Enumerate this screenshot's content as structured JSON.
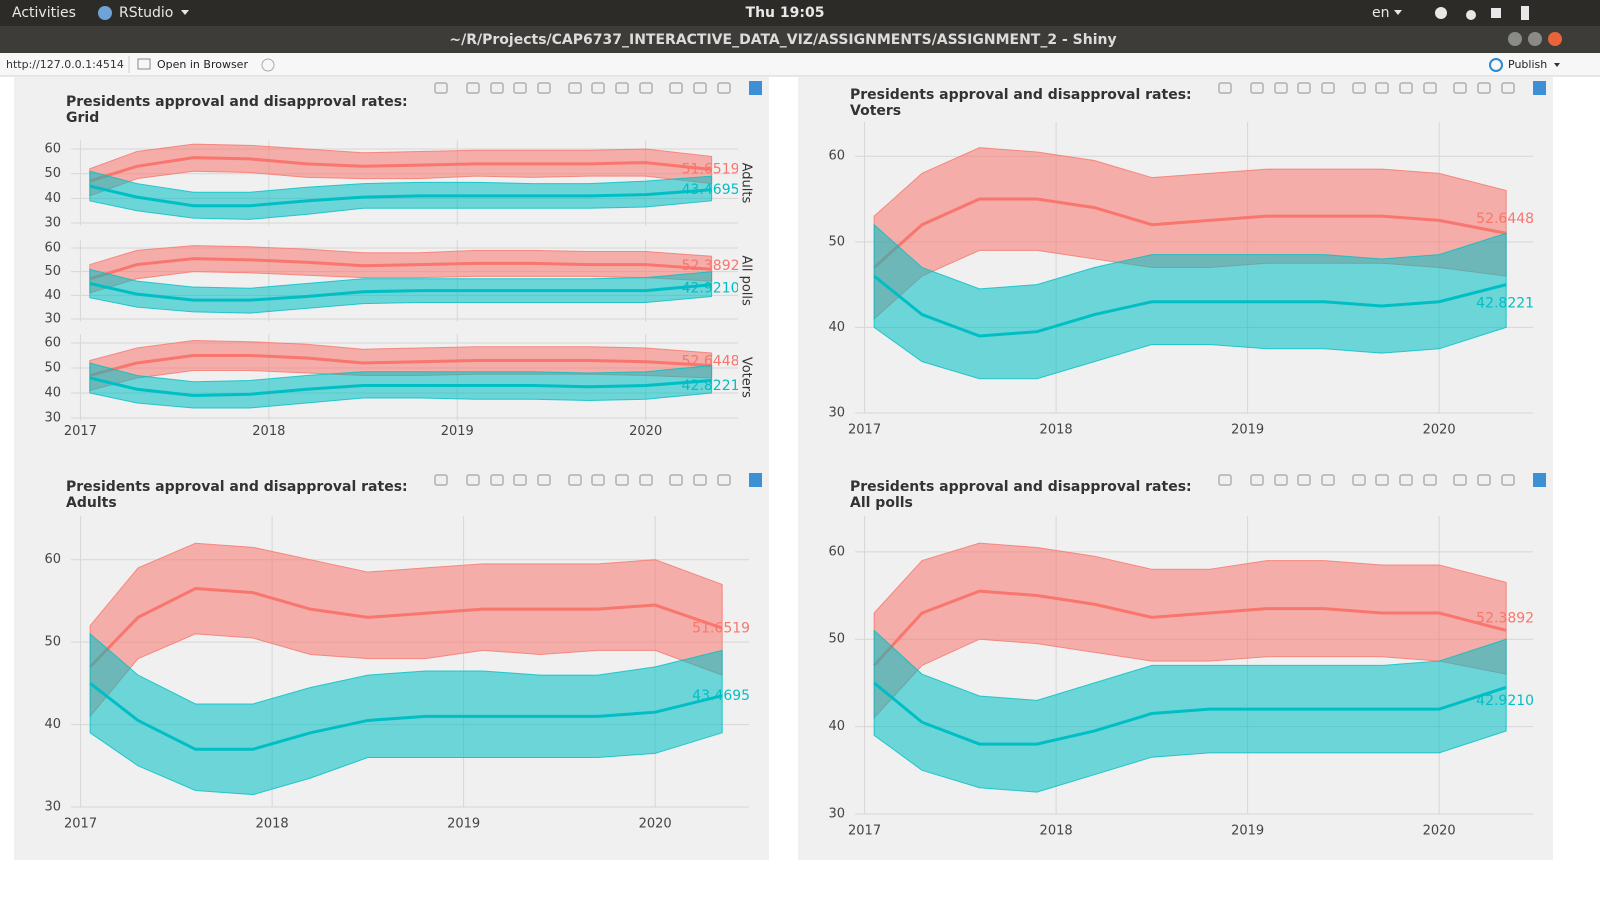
{
  "topbar": {
    "activities": "Activities",
    "app": "RStudio",
    "clock": "Thu 19:05",
    "lang": "en"
  },
  "window_title": "~/R/Projects/CAP6737_INTERACTIVE_DATA_VIZ/ASSIGNMENTS/ASSIGNMENT_2 - Shiny",
  "address": {
    "url": "http://127.0.0.1:4514",
    "open": "Open in Browser",
    "publish": "Publish"
  },
  "chart_data": [
    {
      "type": "facet_grid",
      "title": "Presidents approval and disapproval rates:",
      "subtitle": "Grid",
      "x": [
        2017.05,
        2017.3,
        2017.6,
        2017.9,
        2018.2,
        2018.5,
        2018.8,
        2019.1,
        2019.4,
        2019.7,
        2020.0,
        2020.35
      ],
      "xlim": [
        2016.95,
        2020.49
      ],
      "xticks": [
        2017,
        2018,
        2019,
        2020
      ],
      "grid": true,
      "facets": [
        {
          "label": "Adults",
          "ylim": [
            29,
            63.5
          ],
          "yticks": [
            30,
            40,
            50,
            60
          ],
          "series": [
            {
              "color": "#f8766d",
              "values": [
                47,
                53,
                56.5,
                56,
                54,
                53,
                53.5,
                54,
                54,
                54,
                54.5,
                51.7
              ],
              "low": [
                41,
                48,
                51,
                50.5,
                48.5,
                48,
                48,
                49,
                48.5,
                49,
                49,
                46
              ],
              "high": [
                52,
                59,
                62,
                61.5,
                60,
                58.5,
                59,
                59.5,
                59.5,
                59.5,
                60,
                57
              ],
              "end_value": 51.65192
            },
            {
              "color": "#00bfc4",
              "values": [
                45,
                40.5,
                37,
                37,
                39,
                40.5,
                41,
                41,
                41,
                41,
                41.5,
                43.5
              ],
              "low": [
                39,
                35,
                32,
                31.5,
                33.5,
                36,
                36,
                36,
                36,
                36,
                36.5,
                39
              ],
              "high": [
                51,
                46,
                42.5,
                42.5,
                44.5,
                46,
                46.5,
                46.5,
                46,
                46,
                47,
                49
              ],
              "end_value": 43.46952
            }
          ]
        },
        {
          "label": "All polls",
          "ylim": [
            29,
            63.5
          ],
          "yticks": [
            30,
            40,
            50,
            60
          ],
          "series": [
            {
              "color": "#f8766d",
              "values": [
                47,
                53,
                55.5,
                55,
                54,
                52.5,
                53,
                53.5,
                53.5,
                53,
                53,
                51
              ],
              "low": [
                41,
                47,
                50,
                49.5,
                48.5,
                47.5,
                47.5,
                48,
                48,
                48,
                47.5,
                46
              ],
              "high": [
                53,
                59,
                61,
                60.5,
                59.5,
                58,
                58,
                59,
                59,
                58.5,
                58.5,
                56.5
              ],
              "end_value": 52.38926
            },
            {
              "color": "#00bfc4",
              "values": [
                45,
                40.5,
                38,
                38,
                39.5,
                41.5,
                42,
                42,
                42,
                42,
                42,
                44.5
              ],
              "low": [
                39,
                35,
                33,
                32.5,
                34.5,
                36.5,
                37,
                37,
                37,
                37,
                37,
                39.5
              ],
              "high": [
                51,
                46,
                43.5,
                43,
                45,
                47,
                47,
                47,
                47,
                47,
                47.5,
                50
              ],
              "end_value": 42.92109
            }
          ]
        },
        {
          "label": "Voters",
          "ylim": [
            29,
            63.5
          ],
          "yticks": [
            30,
            40,
            50,
            60
          ],
          "series": [
            {
              "color": "#f8766d",
              "values": [
                47,
                52,
                55,
                55,
                54,
                52,
                52.5,
                53,
                53,
                53,
                52.5,
                51
              ],
              "low": [
                41,
                46,
                49,
                49,
                48,
                47,
                47,
                47.5,
                47.5,
                47.5,
                47,
                46
              ],
              "high": [
                53,
                58,
                61,
                60.5,
                59.5,
                57.5,
                58,
                58.5,
                58.5,
                58.5,
                58,
                56
              ],
              "end_value": 52.64486
            },
            {
              "color": "#00bfc4",
              "values": [
                46,
                41.5,
                39,
                39.5,
                41.5,
                43,
                43,
                43,
                43,
                42.5,
                43,
                45
              ],
              "low": [
                40,
                36,
                34,
                34,
                36,
                38,
                38,
                37.5,
                37.5,
                37,
                37.5,
                40
              ],
              "high": [
                52,
                47,
                44.5,
                45,
                47,
                48.5,
                48.5,
                48.5,
                48.5,
                48,
                48.5,
                51
              ],
              "end_value": 42.82214
            }
          ]
        }
      ]
    },
    {
      "type": "band_line",
      "title": "Presidents approval and disapproval rates:",
      "subtitle": "Voters",
      "x": [
        2017.05,
        2017.3,
        2017.6,
        2017.9,
        2018.2,
        2018.5,
        2018.8,
        2019.1,
        2019.4,
        2019.7,
        2020.0,
        2020.35
      ],
      "xlim": [
        2016.95,
        2020.49
      ],
      "xticks": [
        2017,
        2018,
        2019,
        2020
      ],
      "ylim": [
        30,
        64
      ],
      "yticks": [
        30,
        40,
        50,
        60
      ],
      "grid": true,
      "series": [
        {
          "color": "#f8766d",
          "values": [
            47,
            52,
            55,
            55,
            54,
            52,
            52.5,
            53,
            53,
            53,
            52.5,
            51
          ],
          "low": [
            41,
            46,
            49,
            49,
            48,
            47,
            47,
            47.5,
            47.5,
            47.5,
            47,
            46
          ],
          "high": [
            53,
            58,
            61,
            60.5,
            59.5,
            57.5,
            58,
            58.5,
            58.5,
            58.5,
            58,
            56
          ],
          "end_value": 52.64486
        },
        {
          "color": "#00bfc4",
          "values": [
            46,
            41.5,
            39,
            39.5,
            41.5,
            43,
            43,
            43,
            43,
            42.5,
            43,
            45
          ],
          "low": [
            40,
            36,
            34,
            34,
            36,
            38,
            38,
            37.5,
            37.5,
            37,
            37.5,
            40
          ],
          "high": [
            52,
            47,
            44.5,
            45,
            47,
            48.5,
            48.5,
            48.5,
            48.5,
            48,
            48.5,
            51
          ],
          "end_value": 42.82214
        }
      ]
    },
    {
      "type": "band_line",
      "title": "Presidents approval and disapproval rates:",
      "subtitle": "Adults",
      "x": [
        2017.05,
        2017.3,
        2017.6,
        2017.9,
        2018.2,
        2018.5,
        2018.8,
        2019.1,
        2019.4,
        2019.7,
        2020.0,
        2020.35
      ],
      "xlim": [
        2016.95,
        2020.49
      ],
      "xticks": [
        2017,
        2018,
        2019,
        2020
      ],
      "ylim": [
        30,
        65.3
      ],
      "yticks": [
        30,
        40,
        50,
        60
      ],
      "grid": true,
      "series": [
        {
          "color": "#f8766d",
          "values": [
            47,
            53,
            56.5,
            56,
            54,
            53,
            53.5,
            54,
            54,
            54,
            54.5,
            51.7
          ],
          "low": [
            41,
            48,
            51,
            50.5,
            48.5,
            48,
            48,
            49,
            48.5,
            49,
            49,
            46
          ],
          "high": [
            52,
            59,
            62,
            61.5,
            60,
            58.5,
            59,
            59.5,
            59.5,
            59.5,
            60,
            57
          ],
          "end_value": 51.65192
        },
        {
          "color": "#00bfc4",
          "values": [
            45,
            40.5,
            37,
            37,
            39,
            40.5,
            41,
            41,
            41,
            41,
            41.5,
            43.5
          ],
          "low": [
            39,
            35,
            32,
            31.5,
            33.5,
            36,
            36,
            36,
            36,
            36,
            36.5,
            39
          ],
          "high": [
            51,
            46,
            42.5,
            42.5,
            44.5,
            46,
            46.5,
            46.5,
            46,
            46,
            47,
            49
          ],
          "end_value": 43.46952
        }
      ]
    },
    {
      "type": "band_line",
      "title": "Presidents approval and disapproval rates:",
      "subtitle": "All polls",
      "x": [
        2017.05,
        2017.3,
        2017.6,
        2017.9,
        2018.2,
        2018.5,
        2018.8,
        2019.1,
        2019.4,
        2019.7,
        2020.0,
        2020.35
      ],
      "xlim": [
        2016.95,
        2020.49
      ],
      "xticks": [
        2017,
        2018,
        2019,
        2020
      ],
      "ylim": [
        30,
        64.1
      ],
      "yticks": [
        30,
        40,
        50,
        60
      ],
      "grid": true,
      "series": [
        {
          "color": "#f8766d",
          "values": [
            47,
            53,
            55.5,
            55,
            54,
            52.5,
            53,
            53.5,
            53.5,
            53,
            53,
            51
          ],
          "low": [
            41,
            47,
            50,
            49.5,
            48.5,
            47.5,
            47.5,
            48,
            48,
            48,
            47.5,
            46
          ],
          "high": [
            53,
            59,
            61,
            60.5,
            59.5,
            58,
            58,
            59,
            59,
            58.5,
            58.5,
            56.5
          ],
          "end_value": 52.38926
        },
        {
          "color": "#00bfc4",
          "values": [
            45,
            40.5,
            38,
            38,
            39.5,
            41.5,
            42,
            42,
            42,
            42,
            42,
            44.5
          ],
          "low": [
            39,
            35,
            33,
            32.5,
            34.5,
            36.5,
            37,
            37,
            37,
            37,
            37,
            39.5
          ],
          "high": [
            51,
            46,
            43.5,
            43,
            45,
            47,
            47,
            47,
            47,
            47,
            47.5,
            50
          ],
          "end_value": 42.92109
        }
      ]
    }
  ]
}
